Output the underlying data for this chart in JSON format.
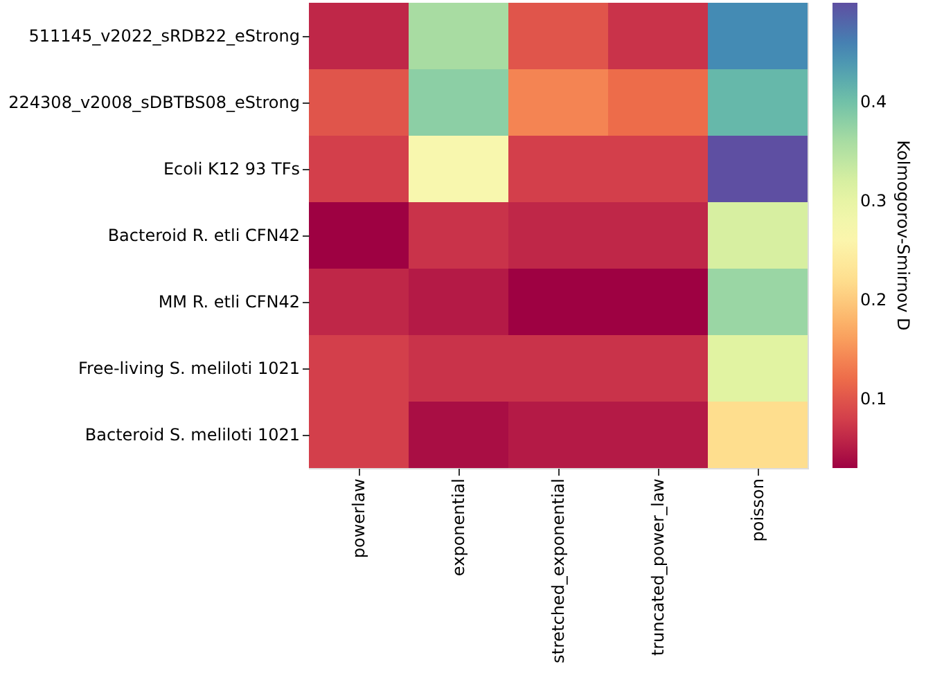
{
  "chart_data": {
    "type": "heatmap",
    "categories": [
      "powerlaw",
      "exponential",
      "stretched_exponential",
      "truncated_power_law",
      "poisson"
    ],
    "y_categories": [
      "511145_v2022_sRDB22_eStrong",
      "224308_v2008_sDBTBS08_eStrong",
      "Ecoli K12 93 TFs",
      "Bacteroid R. etli CFN42",
      "MM R. etli CFN42",
      "Free-living S. meliloti 1021",
      "Bacteroid S. meliloti 1021"
    ],
    "cells": [
      [
        0.06,
        0.36,
        0.1,
        0.07,
        0.45
      ],
      [
        0.1,
        0.38,
        0.14,
        0.12,
        0.41
      ],
      [
        0.08,
        0.27,
        0.08,
        0.08,
        0.5
      ],
      [
        0.03,
        0.07,
        0.06,
        0.06,
        0.32
      ],
      [
        0.06,
        0.05,
        0.03,
        0.03,
        0.37
      ],
      [
        0.08,
        0.07,
        0.07,
        0.07,
        0.31
      ],
      [
        0.08,
        0.04,
        0.05,
        0.05,
        0.22
      ]
    ],
    "clabel": "Kolmogorov-Smirnov D",
    "clim": [
      0.03,
      0.5
    ],
    "cticks": [
      0.1,
      0.2,
      0.3,
      0.4
    ]
  }
}
